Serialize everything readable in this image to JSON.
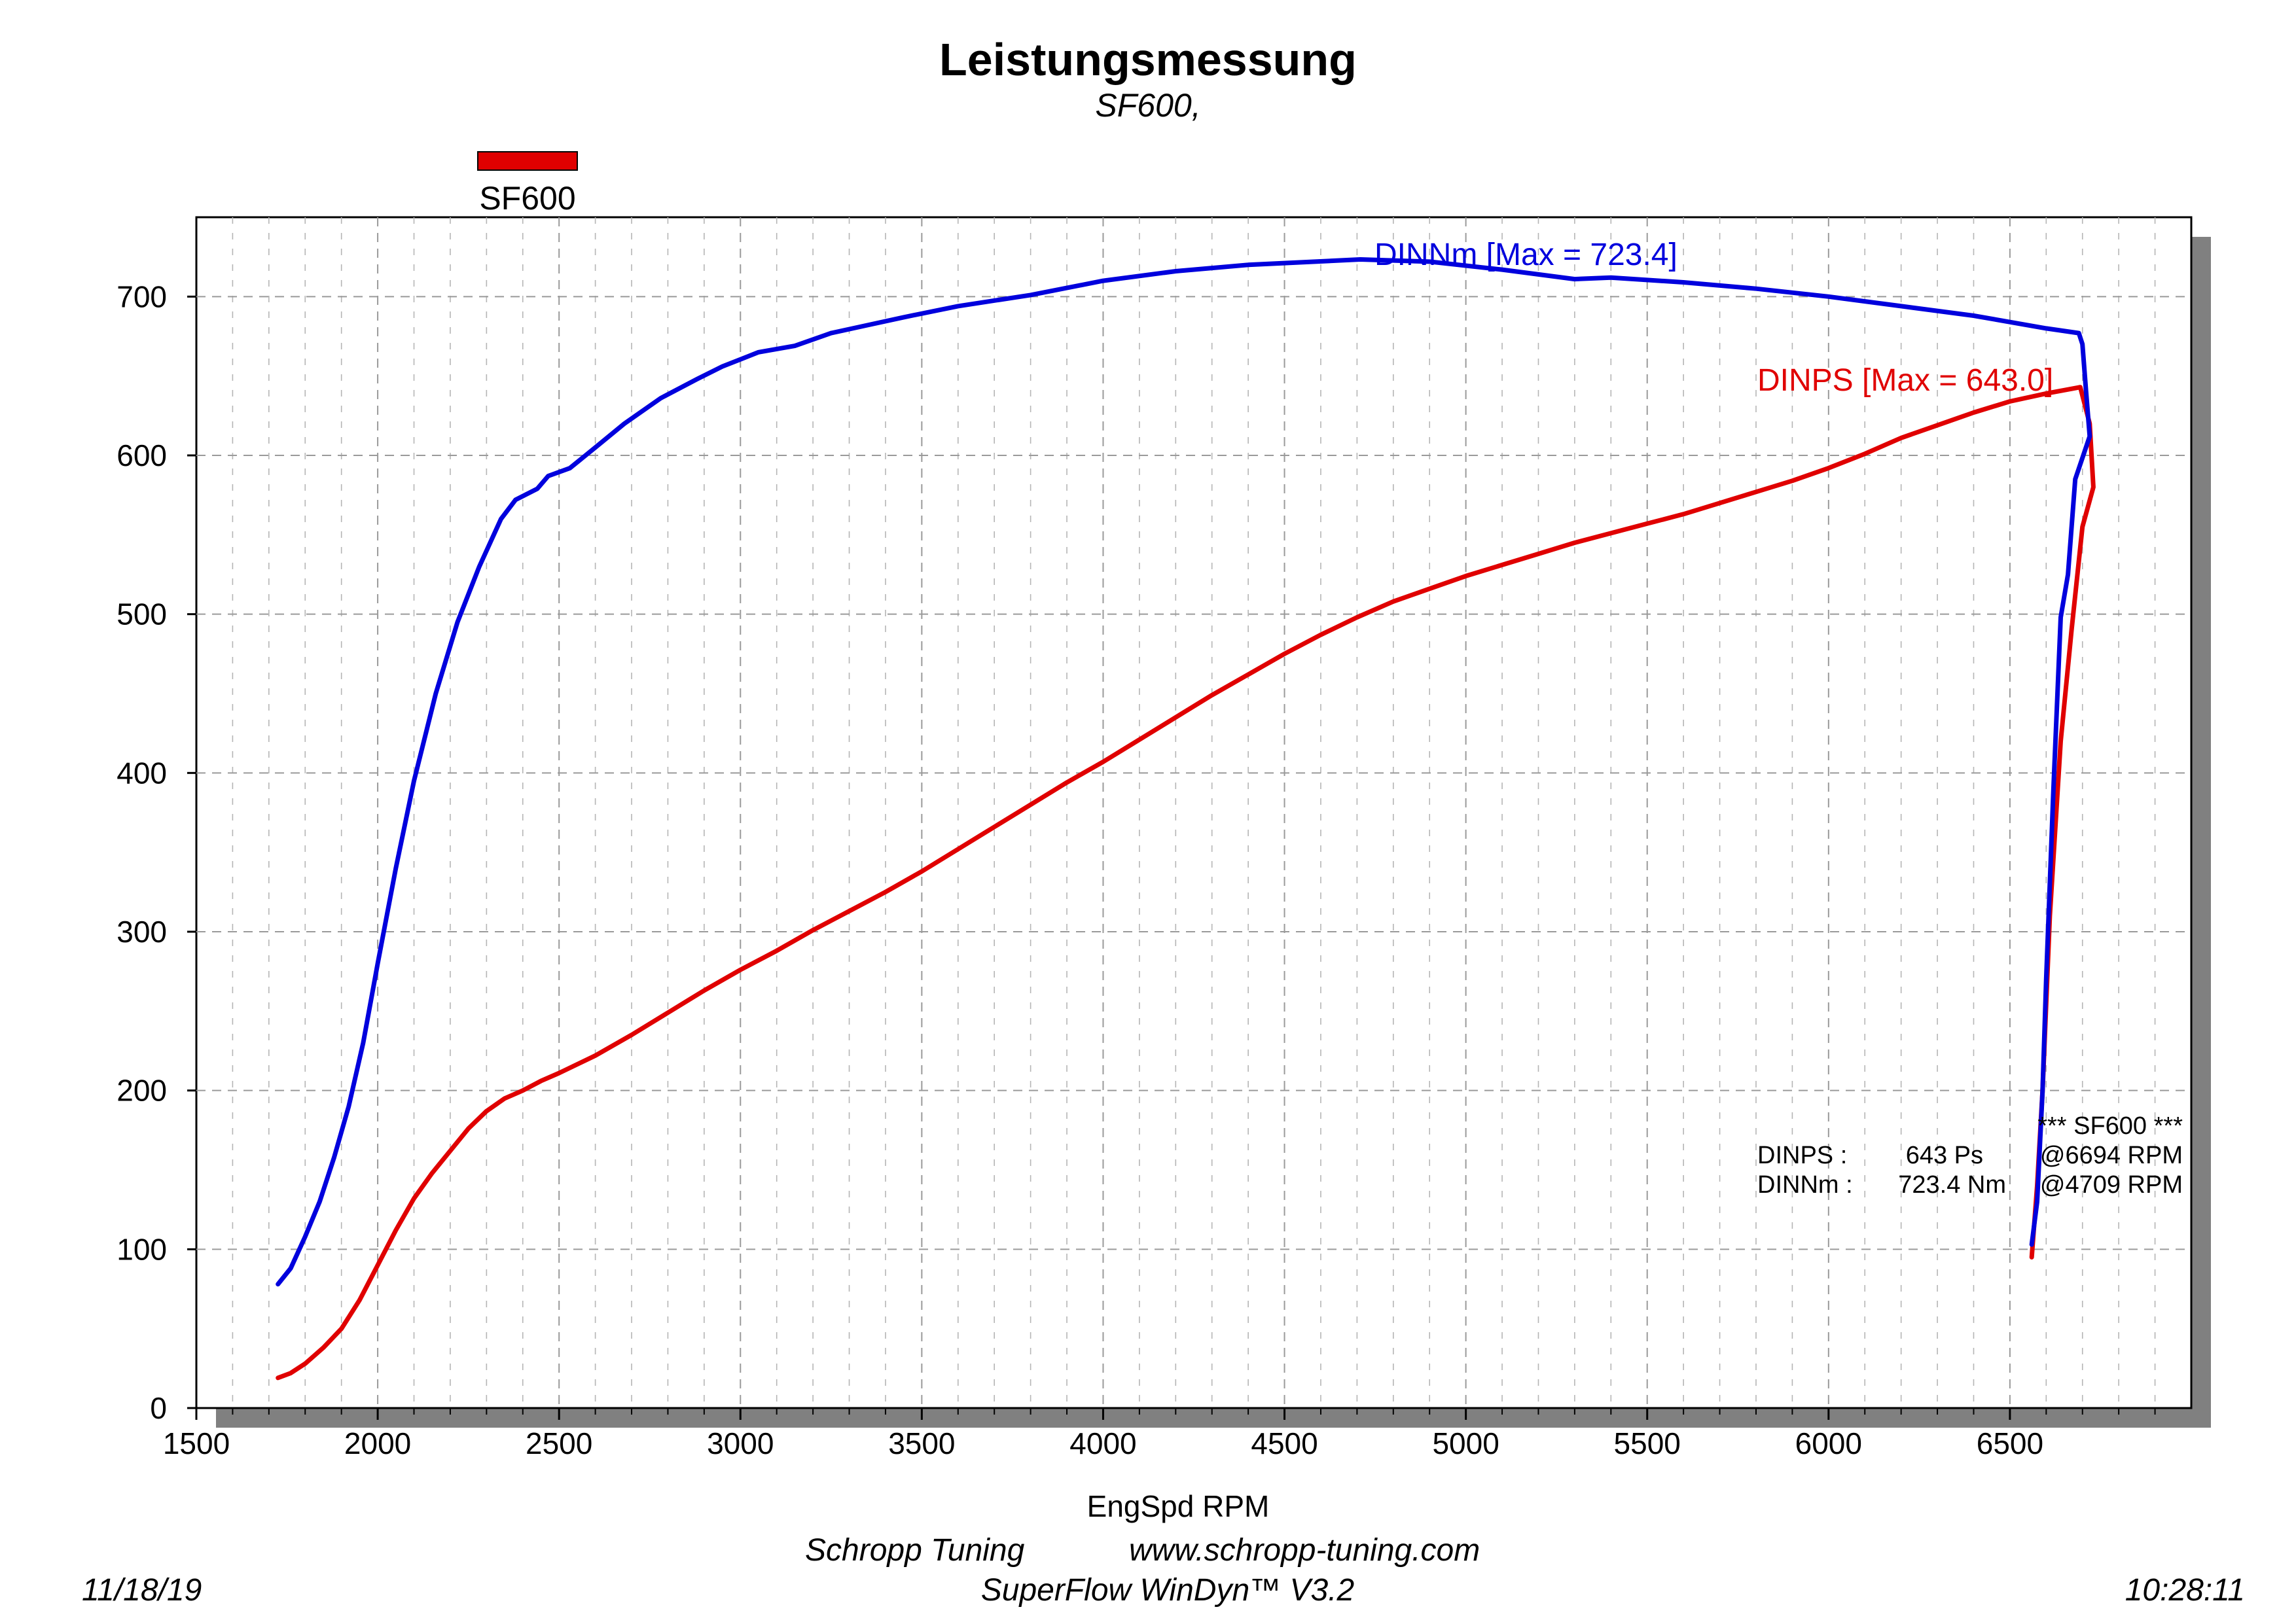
{
  "chart_data": {
    "type": "line",
    "title": "Leistungsmessung",
    "subtitle": "SF600,",
    "xlabel": "EngSpd RPM",
    "ylabel": "",
    "xlim": [
      1500,
      7000
    ],
    "ylim": [
      0,
      750
    ],
    "x_ticks": [
      1500,
      2000,
      2500,
      3000,
      3500,
      4000,
      4500,
      5000,
      5500,
      6000,
      6500
    ],
    "y_ticks": [
      0,
      100,
      200,
      300,
      400,
      500,
      600,
      700
    ],
    "grid": true,
    "legend": {
      "position": "top-left",
      "entries": [
        {
          "name": "SF600",
          "color": "#e00000"
        }
      ]
    },
    "series": [
      {
        "name": "DINNm",
        "color": "#0000dd",
        "max_label": "DINNm  [Max = 723.4]",
        "points": [
          [
            1725,
            78
          ],
          [
            1760,
            88
          ],
          [
            1800,
            108
          ],
          [
            1840,
            130
          ],
          [
            1880,
            158
          ],
          [
            1920,
            190
          ],
          [
            1960,
            230
          ],
          [
            2000,
            280
          ],
          [
            2050,
            340
          ],
          [
            2100,
            395
          ],
          [
            2160,
            450
          ],
          [
            2220,
            495
          ],
          [
            2280,
            530
          ],
          [
            2340,
            560
          ],
          [
            2380,
            572
          ],
          [
            2440,
            579
          ],
          [
            2470,
            587
          ],
          [
            2530,
            592
          ],
          [
            2600,
            605
          ],
          [
            2680,
            620
          ],
          [
            2780,
            636
          ],
          [
            2880,
            648
          ],
          [
            2950,
            656
          ],
          [
            3050,
            665
          ],
          [
            3150,
            669
          ],
          [
            3250,
            677
          ],
          [
            3350,
            682
          ],
          [
            3450,
            687
          ],
          [
            3600,
            694
          ],
          [
            3800,
            701
          ],
          [
            4000,
            710
          ],
          [
            4200,
            716
          ],
          [
            4400,
            720
          ],
          [
            4709,
            723.4
          ],
          [
            4900,
            722
          ],
          [
            5100,
            717
          ],
          [
            5300,
            711
          ],
          [
            5400,
            712
          ],
          [
            5600,
            709
          ],
          [
            5800,
            705
          ],
          [
            6000,
            700
          ],
          [
            6200,
            694
          ],
          [
            6400,
            688
          ],
          [
            6600,
            680
          ],
          [
            6690,
            677
          ],
          [
            6700,
            670
          ],
          [
            6710,
            640
          ],
          [
            6720,
            612
          ],
          [
            6680,
            585
          ],
          [
            6660,
            525
          ],
          [
            6640,
            498
          ],
          [
            6620,
            390
          ],
          [
            6600,
            270
          ],
          [
            6590,
            200
          ],
          [
            6575,
            130
          ],
          [
            6560,
            103
          ]
        ]
      },
      {
        "name": "DINPS",
        "color": "#e00000",
        "max_label": "DINPS  [Max = 643.0]",
        "points": [
          [
            1725,
            19
          ],
          [
            1760,
            22
          ],
          [
            1800,
            28
          ],
          [
            1850,
            38
          ],
          [
            1900,
            50
          ],
          [
            1950,
            68
          ],
          [
            2000,
            90
          ],
          [
            2050,
            112
          ],
          [
            2100,
            132
          ],
          [
            2150,
            148
          ],
          [
            2200,
            162
          ],
          [
            2250,
            176
          ],
          [
            2300,
            187
          ],
          [
            2350,
            195
          ],
          [
            2400,
            200
          ],
          [
            2450,
            206
          ],
          [
            2500,
            211
          ],
          [
            2600,
            222
          ],
          [
            2700,
            235
          ],
          [
            2800,
            249
          ],
          [
            2900,
            263
          ],
          [
            3000,
            276
          ],
          [
            3100,
            288
          ],
          [
            3200,
            301
          ],
          [
            3300,
            313
          ],
          [
            3400,
            325
          ],
          [
            3500,
            338
          ],
          [
            3600,
            352
          ],
          [
            3700,
            366
          ],
          [
            3800,
            380
          ],
          [
            3900,
            394
          ],
          [
            4000,
            407
          ],
          [
            4100,
            421
          ],
          [
            4200,
            435
          ],
          [
            4300,
            449
          ],
          [
            4400,
            462
          ],
          [
            4500,
            475
          ],
          [
            4600,
            487
          ],
          [
            4700,
            498
          ],
          [
            4800,
            508
          ],
          [
            4900,
            516
          ],
          [
            5000,
            524
          ],
          [
            5100,
            531
          ],
          [
            5200,
            538
          ],
          [
            5300,
            545
          ],
          [
            5400,
            551
          ],
          [
            5500,
            557
          ],
          [
            5600,
            563
          ],
          [
            5700,
            570
          ],
          [
            5800,
            577
          ],
          [
            5900,
            584
          ],
          [
            6000,
            592
          ],
          [
            6100,
            601
          ],
          [
            6200,
            611
          ],
          [
            6300,
            619
          ],
          [
            6400,
            627
          ],
          [
            6500,
            634
          ],
          [
            6600,
            639
          ],
          [
            6694,
            643
          ],
          [
            6720,
            620
          ],
          [
            6730,
            580
          ],
          [
            6700,
            555
          ],
          [
            6670,
            490
          ],
          [
            6640,
            420
          ],
          [
            6610,
            310
          ],
          [
            6590,
            200
          ],
          [
            6575,
            140
          ],
          [
            6560,
            95
          ]
        ]
      }
    ],
    "summary": {
      "header": "*** SF600 ***",
      "rows": [
        {
          "name": "DINPS :",
          "value": "643 Ps",
          "at": "@6694 RPM"
        },
        {
          "name": "DINNm :",
          "value": "723.4 Nm",
          "at": "@4709 RPM"
        }
      ]
    }
  },
  "footer": {
    "company": "Schropp Tuning",
    "website": "www.schropp-tuning.com",
    "software": "SuperFlow WinDyn™ V3.2",
    "date": "11/18/19",
    "time": "10:28:11"
  }
}
